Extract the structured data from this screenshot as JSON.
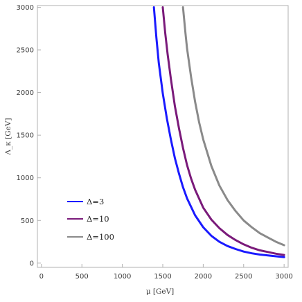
{
  "chart_data": {
    "type": "line",
    "xlabel": "μ [GeV]",
    "ylabel": "Λ_κ [GeV]",
    "xlim": [
      -50,
      3050
    ],
    "ylim": [
      -50,
      3020
    ],
    "xticks": [
      0,
      500,
      1000,
      1500,
      2000,
      2500,
      3000
    ],
    "yticks": [
      0,
      500,
      1000,
      1500,
      2000,
      2500,
      3000
    ],
    "grid": false,
    "legend_position": "bottom-left",
    "series": [
      {
        "name": "Δ=3",
        "color": "#1a1aff",
        "x": [
          1390,
          1420,
          1450,
          1500,
          1550,
          1600,
          1650,
          1700,
          1750,
          1800,
          1900,
          2000,
          2100,
          2200,
          2300,
          2400,
          2500,
          2600,
          2700,
          2800,
          2900,
          3000
        ],
        "y": [
          3000,
          2650,
          2350,
          1990,
          1700,
          1450,
          1230,
          1050,
          890,
          760,
          560,
          420,
          320,
          250,
          200,
          165,
          135,
          115,
          100,
          90,
          80,
          70
        ]
      },
      {
        "name": "Δ=10",
        "color": "#7a1a7a",
        "x": [
          1500,
          1530,
          1560,
          1600,
          1650,
          1700,
          1750,
          1800,
          1850,
          1900,
          2000,
          2100,
          2200,
          2300,
          2400,
          2500,
          2600,
          2700,
          2800,
          2900,
          3000
        ],
        "y": [
          3000,
          2700,
          2450,
          2160,
          1840,
          1580,
          1350,
          1150,
          990,
          860,
          650,
          510,
          410,
          330,
          270,
          220,
          180,
          150,
          130,
          110,
          95
        ]
      },
      {
        "name": "Δ=100",
        "color": "#8a8a8a",
        "x": [
          1750,
          1780,
          1800,
          1850,
          1900,
          1950,
          2000,
          2100,
          2200,
          2300,
          2400,
          2500,
          2600,
          2700,
          2800,
          2900,
          3000
        ],
        "y": [
          3000,
          2700,
          2520,
          2180,
          1890,
          1650,
          1450,
          1140,
          910,
          740,
          610,
          500,
          420,
          350,
          300,
          250,
          210
        ]
      }
    ]
  }
}
